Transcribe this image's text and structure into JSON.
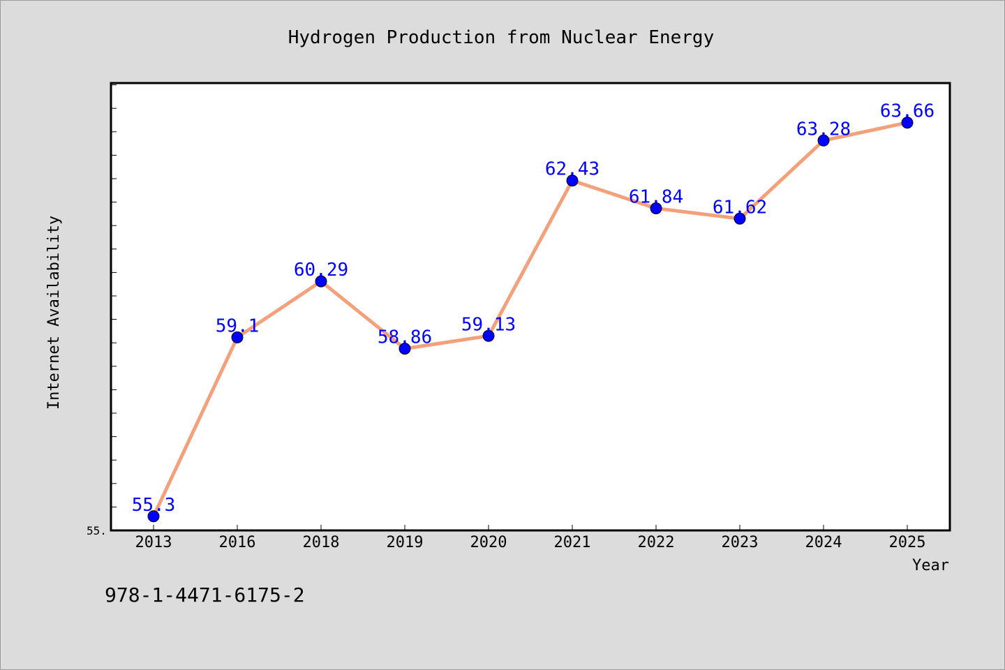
{
  "chart_data": {
    "type": "line",
    "title": "Hydrogen Production from Nuclear Energy",
    "xlabel": "Year",
    "ylabel": "Internet Availability",
    "categories": [
      "2013",
      "2016",
      "2018",
      "2019",
      "2020",
      "2021",
      "2022",
      "2023",
      "2024",
      "2025"
    ],
    "series": [
      {
        "values": [
          55.3,
          59.1,
          60.29,
          58.86,
          59.13,
          62.43,
          61.84,
          61.62,
          63.28,
          63.66
        ],
        "labels": [
          "55.3",
          "59.1",
          "60.29",
          "58.86",
          "59.13",
          "62.43",
          "61.84",
          "61.62",
          "63.28",
          "63.66"
        ],
        "line_color": "#f4a07a",
        "marker_color": "#0000ff"
      }
    ],
    "ylim": [
      55.0,
      64.5
    ],
    "y_tick_label": "55.",
    "grid": false
  },
  "footnote": "978-1-4471-6175-2"
}
